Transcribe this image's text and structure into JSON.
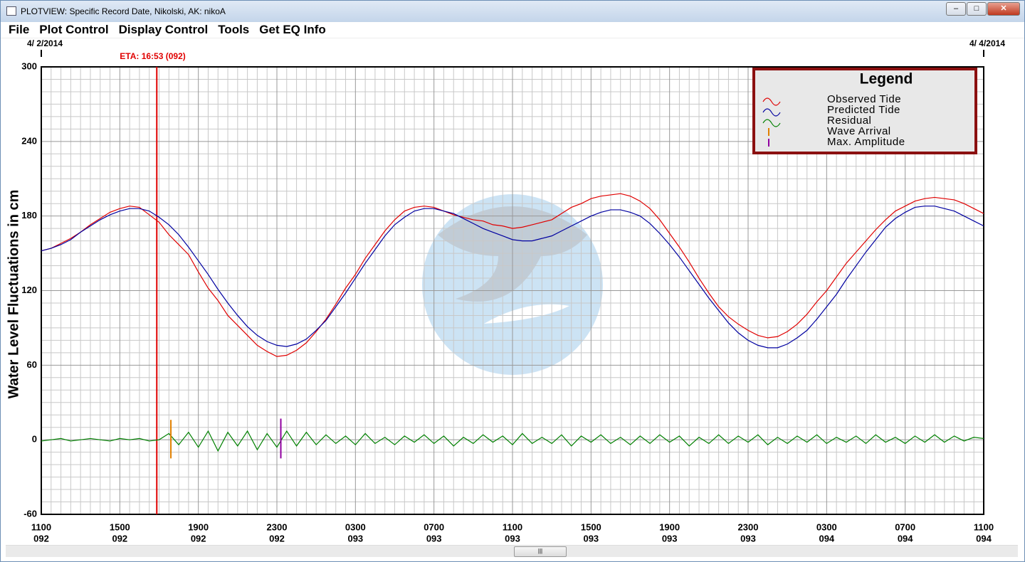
{
  "window": {
    "title": "PLOTVIEW: Specific Record Date, Nikolski, AK: nikoA"
  },
  "menu": [
    "File",
    "Plot Control",
    "Display Control",
    "Tools",
    "Get EQ Info"
  ],
  "chart_data": {
    "type": "line",
    "ylabel": "Water Level Fluctuations in cm",
    "ylim": [
      -60,
      300
    ],
    "yticks": [
      -60,
      0,
      60,
      120,
      180,
      240,
      300
    ],
    "xlim": [
      0,
      48
    ],
    "xticks": [
      {
        "value": 0,
        "label": "1100"
      },
      {
        "value": 4,
        "label": "1500"
      },
      {
        "value": 8,
        "label": "1900"
      },
      {
        "value": 12,
        "label": "2300"
      },
      {
        "value": 16,
        "label": "0300"
      },
      {
        "value": 20,
        "label": "0700"
      },
      {
        "value": 24,
        "label": "1100"
      },
      {
        "value": 28,
        "label": "1500"
      },
      {
        "value": 32,
        "label": "1900"
      },
      {
        "value": 36,
        "label": "2300"
      },
      {
        "value": 40,
        "label": "0300"
      },
      {
        "value": 44,
        "label": "0700"
      },
      {
        "value": 48,
        "label": "1100"
      }
    ],
    "xtick_sublabels": [
      "092",
      "092",
      "092",
      "092",
      "093",
      "093",
      "093",
      "093",
      "093",
      "093",
      "094",
      "094",
      "094"
    ],
    "grid": true,
    "date_labels": [
      {
        "text": "4/ 2/2014",
        "x": 0
      },
      {
        "text": "4/ 4/2014",
        "x": 48
      }
    ],
    "annotations": [
      {
        "text": "ETA: 16:53 (092)",
        "x": 5.883,
        "color": "#e00000"
      }
    ],
    "legend_title": "Legend",
    "x": [
      0,
      0.5,
      1,
      1.5,
      2,
      2.5,
      3,
      3.5,
      4,
      4.5,
      5,
      5.5,
      6,
      6.5,
      7,
      7.5,
      8,
      8.5,
      9,
      9.5,
      10,
      10.5,
      11,
      11.5,
      12,
      12.5,
      13,
      13.5,
      14,
      14.5,
      15,
      15.5,
      16,
      16.5,
      17,
      17.5,
      18,
      18.5,
      19,
      19.5,
      20,
      20.5,
      21,
      21.5,
      22,
      22.5,
      23,
      23.5,
      24,
      24.5,
      25,
      25.5,
      26,
      26.5,
      27,
      27.5,
      28,
      28.5,
      29,
      29.5,
      30,
      30.5,
      31,
      31.5,
      32,
      32.5,
      33,
      33.5,
      34,
      34.5,
      35,
      35.5,
      36,
      36.5,
      37,
      37.5,
      38,
      38.5,
      39,
      39.5,
      40,
      40.5,
      41,
      41.5,
      42,
      42.5,
      43,
      43.5,
      44,
      44.5,
      45,
      45.5,
      46,
      46.5,
      47,
      47.5,
      48
    ],
    "series": [
      {
        "name": "Observed Tide",
        "color": "#e00000",
        "values": [
          152,
          154,
          158,
          162,
          167,
          173,
          178,
          183,
          186,
          188,
          187,
          181,
          175,
          165,
          157,
          149,
          135,
          122,
          112,
          100,
          92,
          84,
          76,
          71,
          67,
          68,
          72,
          78,
          87,
          97,
          109,
          122,
          133,
          146,
          157,
          168,
          177,
          184,
          187,
          188,
          187,
          184,
          181,
          179,
          177,
          176,
          173,
          172,
          170,
          171,
          173,
          175,
          177,
          182,
          187,
          190,
          194,
          196,
          197,
          198,
          196,
          192,
          186,
          177,
          166,
          155,
          143,
          130,
          118,
          107,
          99,
          93,
          88,
          84,
          82,
          83,
          87,
          93,
          101,
          111,
          120,
          131,
          142,
          151,
          160,
          169,
          177,
          184,
          188,
          192,
          194,
          195,
          194,
          193,
          190,
          186,
          182
        ]
      },
      {
        "name": "Predicted Tide",
        "color": "#0000a0",
        "values": [
          152,
          154,
          157,
          161,
          167,
          172,
          177,
          181,
          184,
          186,
          186,
          184,
          179,
          173,
          165,
          155,
          144,
          133,
          121,
          110,
          100,
          91,
          84,
          79,
          76,
          75,
          77,
          81,
          88,
          96,
          107,
          118,
          130,
          142,
          153,
          164,
          173,
          179,
          184,
          186,
          186,
          184,
          182,
          178,
          174,
          170,
          167,
          164,
          161,
          160,
          160,
          162,
          164,
          168,
          172,
          176,
          180,
          183,
          185,
          185,
          183,
          180,
          174,
          166,
          157,
          147,
          136,
          125,
          114,
          104,
          94,
          86,
          80,
          76,
          74,
          74,
          77,
          82,
          88,
          97,
          107,
          117,
          129,
          140,
          151,
          161,
          171,
          178,
          183,
          187,
          188,
          188,
          186,
          184,
          180,
          176,
          172
        ]
      },
      {
        "name": "Residual",
        "color": "#008000",
        "values": [
          -1,
          0,
          1,
          -1,
          0,
          1,
          0,
          -1,
          1,
          0,
          1,
          -1,
          0,
          5,
          -4,
          6,
          -6,
          7,
          -9,
          6,
          -5,
          7,
          -8,
          5,
          -6,
          7,
          -5,
          6,
          -4,
          4,
          -3,
          3,
          -4,
          5,
          -3,
          2,
          -4,
          3,
          -2,
          4,
          -3,
          3,
          -5,
          2,
          -3,
          4,
          -2,
          3,
          -4,
          5,
          -3,
          2,
          -3,
          4,
          -5,
          3,
          -2,
          4,
          -3,
          2,
          -4,
          3,
          -3,
          4,
          -2,
          3,
          -5,
          2,
          -3,
          4,
          -3,
          3,
          -2,
          4,
          -4,
          2,
          -3,
          3,
          -2,
          4,
          -3,
          2,
          -2,
          3,
          -3,
          4,
          -2,
          2,
          -3,
          3,
          -2,
          4,
          -2,
          3,
          -1,
          2,
          1
        ]
      }
    ],
    "markers": [
      {
        "name": "Wave Arrival",
        "color": "#e08000",
        "x": 6.6,
        "values": [
          -15,
          16
        ]
      },
      {
        "name": "Max. Amplitude",
        "color": "#9000a0",
        "x": 12.2,
        "values": [
          -15,
          17
        ]
      }
    ]
  }
}
